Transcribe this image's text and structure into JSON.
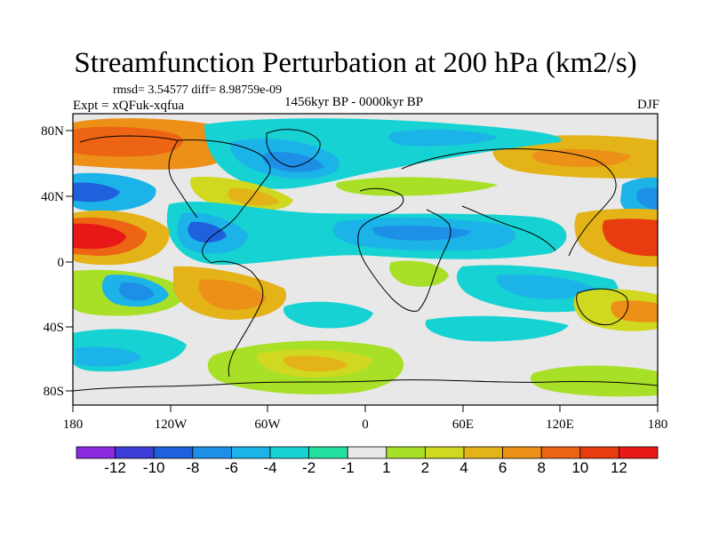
{
  "title": "Streamfunction Perturbation at 200 hPa (km2/s)",
  "stats": "rmsd= 3.54577  diff= 8.98759e-09",
  "experiment": "Expt = xQFuk-xqfua",
  "period": "1456kyr BP - 0000kyr BP",
  "season": "DJF",
  "lat_labels": [
    "80N",
    "40N",
    "0",
    "40S",
    "80S"
  ],
  "lon_labels": [
    "180",
    "120W",
    "60W",
    "0",
    "60E",
    "120E",
    "180"
  ],
  "colorbar": {
    "labels": [
      "-12",
      "-10",
      "-8",
      "-6",
      "-4",
      "-2",
      "-1",
      "1",
      "2",
      "4",
      "6",
      "8",
      "10",
      "12"
    ],
    "colors": [
      "#8a2be2",
      "#3d3dd8",
      "#1f60dc",
      "#1e8fe6",
      "#1bb3e8",
      "#17d2d2",
      "#24e0a0",
      "#e8e8e8",
      "#a8e028",
      "#d0d820",
      "#e4b318",
      "#ec9018",
      "#ec6414",
      "#e83c10",
      "#e81818"
    ]
  }
}
